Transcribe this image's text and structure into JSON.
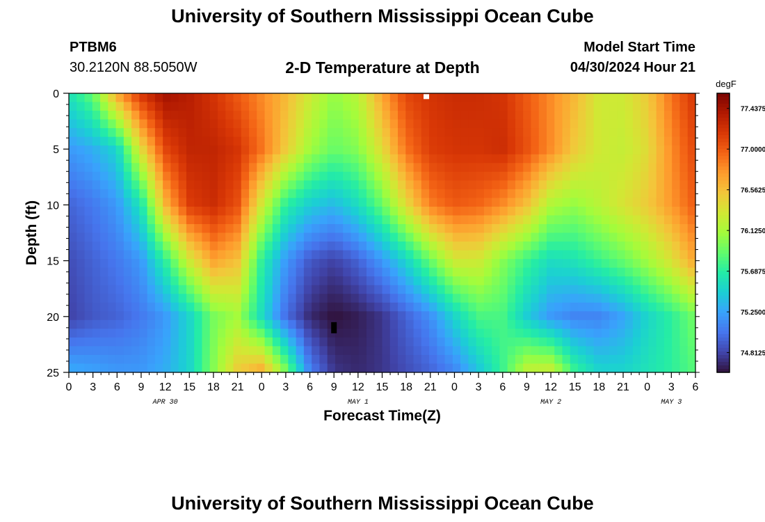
{
  "header": {
    "title": "University of Southern Mississippi Ocean Cube",
    "station": "PTBM6",
    "coordinates": "30.2120N  88.5050W",
    "subtitle": "2-D Temperature at Depth",
    "start_label": "Model Start Time",
    "start_value": "04/30/2024 Hour 21"
  },
  "footer": {
    "title": "University of Southern Mississippi Ocean Cube"
  },
  "chart_data": {
    "type": "heatmap",
    "title": "2-D Temperature at Depth",
    "xlabel": "Forecast Time(Z)",
    "ylabel": "Depth (ft)",
    "x_ticks": [
      "0",
      "3",
      "6",
      "9",
      "12",
      "15",
      "18",
      "21",
      "0",
      "3",
      "6",
      "9",
      "12",
      "15",
      "18",
      "21",
      "0",
      "3",
      "6",
      "9",
      "12",
      "15",
      "18",
      "21",
      "0",
      "3",
      "6"
    ],
    "x_day_labels": [
      {
        "label": "APR 30",
        "hour": 12
      },
      {
        "label": "MAY 1",
        "hour": 36
      },
      {
        "label": "MAY 2",
        "hour": 60
      },
      {
        "label": "MAY 3",
        "hour": 75
      }
    ],
    "x_range_hours": [
      0,
      78
    ],
    "y_ticks": [
      "0",
      "5",
      "10",
      "15",
      "20",
      "25"
    ],
    "y_range_ft": [
      0,
      25
    ],
    "y_inverted": true,
    "colorbar": {
      "unit": "degF",
      "min": 74.6,
      "max": 77.6,
      "tick_values": [
        77.4375,
        77.0,
        76.5625,
        76.125,
        75.6875,
        75.25,
        74.8125
      ],
      "tick_labels": [
        "77.4375",
        "77.0000",
        "76.5625",
        "76.1250",
        "75.6875",
        "75.2500",
        "74.8125"
      ],
      "colormap": [
        "#30123b",
        "#4145ab",
        "#4675ed",
        "#39a2fc",
        "#1bcfd4",
        "#24eca6",
        "#61fc6c",
        "#a4fc3b",
        "#d1e834",
        "#f3c63a",
        "#fe9b2d",
        "#f36315",
        "#d93806",
        "#b11901",
        "#7a0402"
      ]
    },
    "data_sample_times_hours": [
      0,
      3,
      6,
      9,
      12,
      15,
      18,
      21,
      24,
      27,
      30,
      33,
      36,
      39,
      42,
      45,
      48,
      51,
      54,
      57,
      60,
      63,
      66,
      69,
      72,
      75,
      78
    ],
    "data_sample_depths_ft": [
      0,
      5,
      10,
      15,
      20,
      25
    ],
    "values": [
      [
        75.6,
        75.9,
        76.7,
        77.2,
        77.45,
        77.35,
        77.2,
        77.0,
        76.8,
        76.6,
        76.3,
        76.05,
        76.2,
        76.7,
        77.1,
        77.2,
        77.25,
        77.25,
        77.2,
        77.0,
        76.8,
        76.6,
        76.3,
        76.3,
        76.5,
        76.9,
        77.2
      ],
      [
        75.2,
        75.3,
        75.5,
        76.4,
        77.1,
        77.3,
        77.3,
        77.2,
        76.9,
        76.5,
        76.1,
        75.9,
        76.0,
        76.4,
        76.9,
        77.15,
        77.2,
        77.2,
        77.25,
        77.05,
        76.8,
        76.5,
        76.3,
        76.25,
        76.4,
        76.8,
        77.1
      ],
      [
        74.95,
        75.05,
        75.2,
        75.6,
        76.6,
        77.15,
        77.25,
        77.05,
        76.3,
        75.7,
        75.45,
        75.35,
        75.55,
        75.9,
        76.4,
        76.85,
        77.0,
        76.95,
        76.8,
        76.55,
        76.15,
        76.05,
        76.2,
        76.35,
        76.5,
        76.75,
        77.0
      ],
      [
        74.85,
        74.95,
        75.05,
        75.2,
        75.7,
        76.3,
        76.7,
        76.55,
        75.7,
        75.2,
        74.9,
        74.8,
        74.95,
        75.2,
        75.5,
        75.9,
        76.3,
        76.3,
        76.0,
        75.75,
        75.55,
        75.6,
        75.75,
        75.9,
        76.1,
        76.35,
        76.7
      ],
      [
        74.8,
        74.9,
        74.95,
        75.05,
        75.2,
        75.5,
        75.95,
        76.1,
        75.55,
        75.0,
        74.7,
        74.6,
        74.65,
        74.75,
        74.95,
        75.15,
        75.5,
        75.8,
        75.8,
        75.45,
        75.2,
        75.1,
        75.1,
        75.25,
        75.5,
        75.7,
        75.95
      ],
      [
        75.3,
        75.25,
        75.2,
        75.2,
        75.3,
        75.5,
        76.0,
        76.5,
        76.7,
        76.0,
        75.1,
        74.75,
        74.7,
        74.75,
        74.85,
        74.95,
        75.1,
        75.4,
        75.75,
        76.25,
        76.3,
        75.75,
        75.5,
        75.5,
        75.6,
        75.7,
        75.85
      ]
    ],
    "markers": [
      {
        "hour": 44.5,
        "depth_ft": 0.3,
        "color": "#ffffff"
      },
      {
        "hour": 33.0,
        "depth_ft": 21.0,
        "color": "#000000"
      }
    ]
  }
}
